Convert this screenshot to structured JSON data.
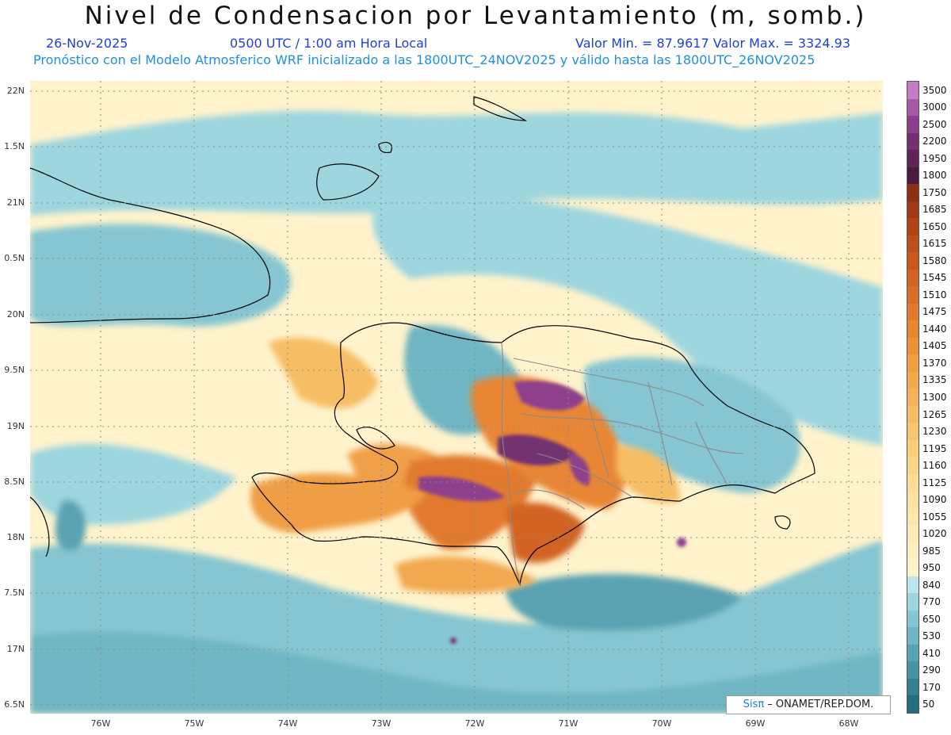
{
  "title": "Nivel de Condensacion por Levantamiento (m, somb.)",
  "date": "26-Nov-2025",
  "time": "0500 UTC / 1:00 am Hora Local",
  "minmax": "Valor Min. = 87.9617  Valor Max. = 3324.93",
  "forecast_note": "Pronóstico con el Modelo Atmosferico WRF inicializado a las 1800UTC_24NOV2025 y válido hasta las  1800UTC_26NOV2025",
  "lat_labels": [
    "22N",
    "1.5N",
    "21N",
    "0.5N",
    "20N",
    "9.5N",
    "19N",
    "8.5N",
    "18N",
    "7.5N",
    "17N",
    "6.5N"
  ],
  "lon_labels": [
    "76W",
    "75W",
    "74W",
    "73W",
    "72W",
    "71W",
    "70W",
    "69W",
    "68W"
  ],
  "colorbar_labels": [
    "3500",
    "3000",
    "2500",
    "2200",
    "1950",
    "1800",
    "1750",
    "1685",
    "1650",
    "1615",
    "1580",
    "1545",
    "1510",
    "1475",
    "1440",
    "1405",
    "1370",
    "1335",
    "1300",
    "1265",
    "1230",
    "1195",
    "1160",
    "1125",
    "1090",
    "1055",
    "1020",
    "985",
    "950",
    "840",
    "770",
    "650",
    "530",
    "410",
    "290",
    "170",
    "50"
  ],
  "colorbar_colors": [
    "#c47cc4",
    "#a85aa8",
    "#8e3f8c",
    "#73306f",
    "#5e2458",
    "#4a1a3e",
    "#8c2f12",
    "#a03a14",
    "#b04416",
    "#bd4f1a",
    "#c8581d",
    "#d26322",
    "#db6e27",
    "#e27a2d",
    "#e88634",
    "#ec923c",
    "#f09e45",
    "#f2a94f",
    "#f4b35a",
    "#f6bd65",
    "#f8c671",
    "#f9ce7d",
    "#fad58a",
    "#fbdb96",
    "#fce1a2",
    "#fde6ae",
    "#fdeab8",
    "#feefc2",
    "#fff3cc",
    "#b8e6ec",
    "#9ed6df",
    "#86c6d2",
    "#6fb5c3",
    "#5aa3b3",
    "#4691a2",
    "#347f91",
    "#266d7f"
  ],
  "credit_brand": "Sisπ",
  "credit_text": " – ONAMET/REP.DOM."
}
